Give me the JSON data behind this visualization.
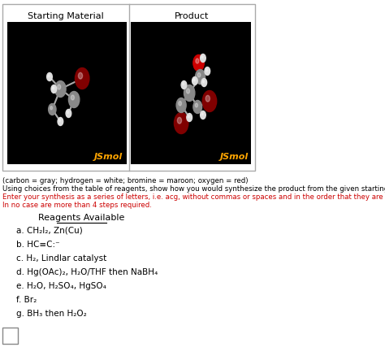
{
  "title_left": "Starting Material",
  "title_right": "Product",
  "jsmol_label": "JSmol",
  "caption_line1": "(carbon = gray; hydrogen = white; bromine = maroon; oxygen = red)",
  "caption_line2": "Using choices from the table of reagents, show how you would synthesize the product from the given starting material.",
  "caption_line3_red": "Enter your synthesis as a series of letters, i.e. acg, without commas or spaces and in the order that they are to be used.",
  "caption_line4_red": "In no case are more than 4 steps required.",
  "reagents_title": "Reagents Available",
  "reagents": [
    "a. CH₂I₂, Zn(Cu)",
    "b. HC≡C:⁻",
    "c. H₂, Lindlar catalyst",
    "d. Hg(OAc)₂, H₂O/THF then NaBH₄",
    "e. H₂O, H₂SO₄, HgSO₄",
    "f. Br₂",
    "g. BH₃ then H₂O₂"
  ],
  "bg_color": "#ffffff",
  "box_bg": "#000000",
  "jsmol_color": "#FFA500",
  "caption_color": "#000000",
  "red_color": "#cc0000",
  "reagent_color": "#000000"
}
